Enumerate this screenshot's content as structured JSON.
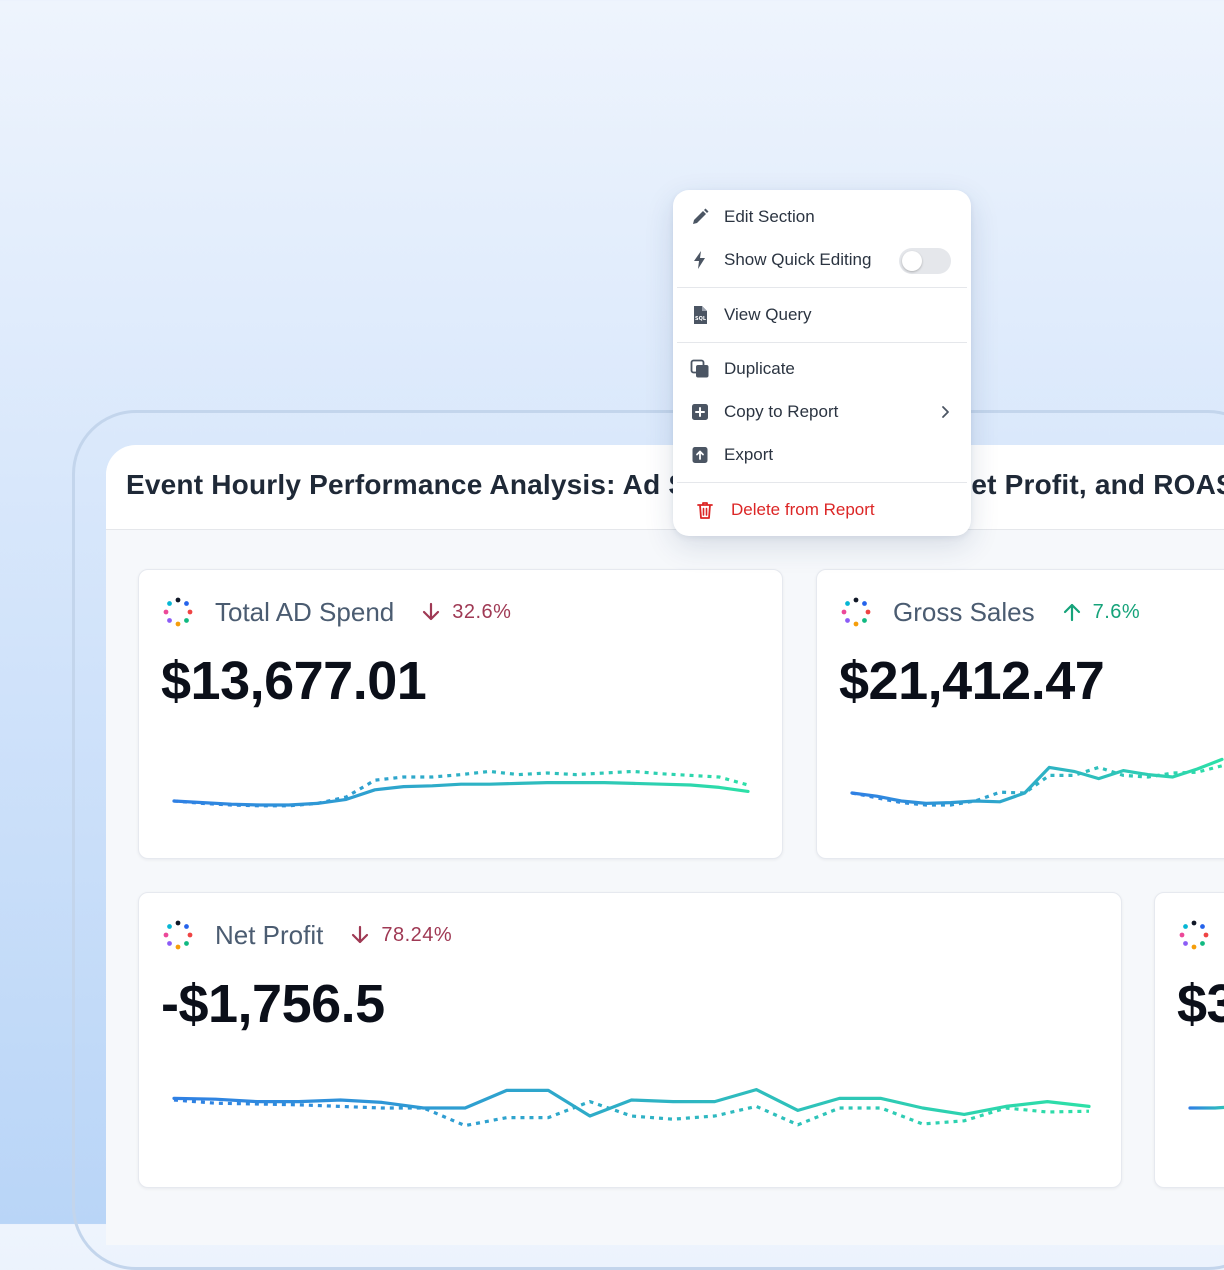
{
  "panel": {
    "title": "Event Hourly Performance Analysis: Ad Spend, Gross Sales, Net Profit, and ROAS"
  },
  "context_menu": {
    "items": [
      {
        "label": "Edit Section",
        "icon": "pencil-icon"
      },
      {
        "label": "Show Quick Editing",
        "icon": "lightning-icon",
        "toggle_on": false
      },
      {
        "label": "View Query",
        "icon": "sql-file-icon"
      },
      {
        "label": "Duplicate",
        "icon": "duplicate-icon"
      },
      {
        "label": "Copy to Report",
        "icon": "plus-square-icon",
        "has_submenu": true
      },
      {
        "label": "Export",
        "icon": "export-icon"
      },
      {
        "label": "Delete from Report",
        "icon": "trash-icon",
        "danger": true
      }
    ]
  },
  "metrics": [
    {
      "name": "Total AD Spend",
      "delta": "32.6%",
      "direction": "down",
      "value": "$13,677.01"
    },
    {
      "name": "Gross Sales",
      "delta": "7.6%",
      "direction": "up",
      "value": "$21,412.47"
    },
    {
      "name": "Net Profit",
      "delta": "78.24%",
      "direction": "down",
      "value": "-$1,756.5"
    },
    {
      "name": "",
      "delta": "",
      "direction": "",
      "value": "$3"
    }
  ],
  "colors": {
    "down": "#9f3954",
    "up": "#16a37a",
    "spark_start": "#2f80e4",
    "spark_end": "#2de0a7",
    "danger": "#dc2626"
  },
  "chart_data": [
    {
      "type": "line",
      "title": "",
      "series": [
        {
          "values": [
            0.3,
            0.28,
            0.26,
            0.25,
            0.25,
            0.27,
            0.32,
            0.44,
            0.48,
            0.49,
            0.51,
            0.51,
            0.52,
            0.53,
            0.53,
            0.53,
            0.52,
            0.51,
            0.5,
            0.47,
            0.42
          ]
        },
        {
          "values": [
            0.3,
            0.27,
            0.25,
            0.24,
            0.24,
            0.27,
            0.35,
            0.56,
            0.6,
            0.6,
            0.63,
            0.67,
            0.63,
            0.65,
            0.63,
            0.65,
            0.67,
            0.64,
            0.62,
            0.6,
            0.5
          ]
        }
      ]
    },
    {
      "type": "line",
      "title": "",
      "series": [
        {
          "values": [
            0.4,
            0.36,
            0.3,
            0.27,
            0.28,
            0.3,
            0.29,
            0.4,
            0.72,
            0.67,
            0.58,
            0.68,
            0.63,
            0.6,
            0.7,
            0.82
          ]
        },
        {
          "values": [
            0.4,
            0.34,
            0.28,
            0.25,
            0.25,
            0.3,
            0.41,
            0.4,
            0.62,
            0.62,
            0.72,
            0.62,
            0.6,
            0.65,
            0.66,
            0.74
          ]
        }
      ]
    },
    {
      "type": "line",
      "title": "",
      "series": [
        {
          "values": [
            0.62,
            0.61,
            0.58,
            0.58,
            0.6,
            0.57,
            0.5,
            0.5,
            0.72,
            0.72,
            0.4,
            0.6,
            0.58,
            0.58,
            0.73,
            0.47,
            0.62,
            0.62,
            0.5,
            0.42,
            0.52,
            0.58,
            0.52
          ]
        },
        {
          "values": [
            0.6,
            0.56,
            0.55,
            0.54,
            0.52,
            0.5,
            0.5,
            0.28,
            0.38,
            0.38,
            0.58,
            0.4,
            0.36,
            0.4,
            0.52,
            0.29,
            0.5,
            0.5,
            0.3,
            0.34,
            0.5,
            0.45,
            0.46
          ]
        }
      ]
    },
    {
      "type": "line",
      "title": "",
      "series": [
        {
          "values": [
            0.5,
            0.5,
            0.52
          ]
        }
      ]
    }
  ]
}
